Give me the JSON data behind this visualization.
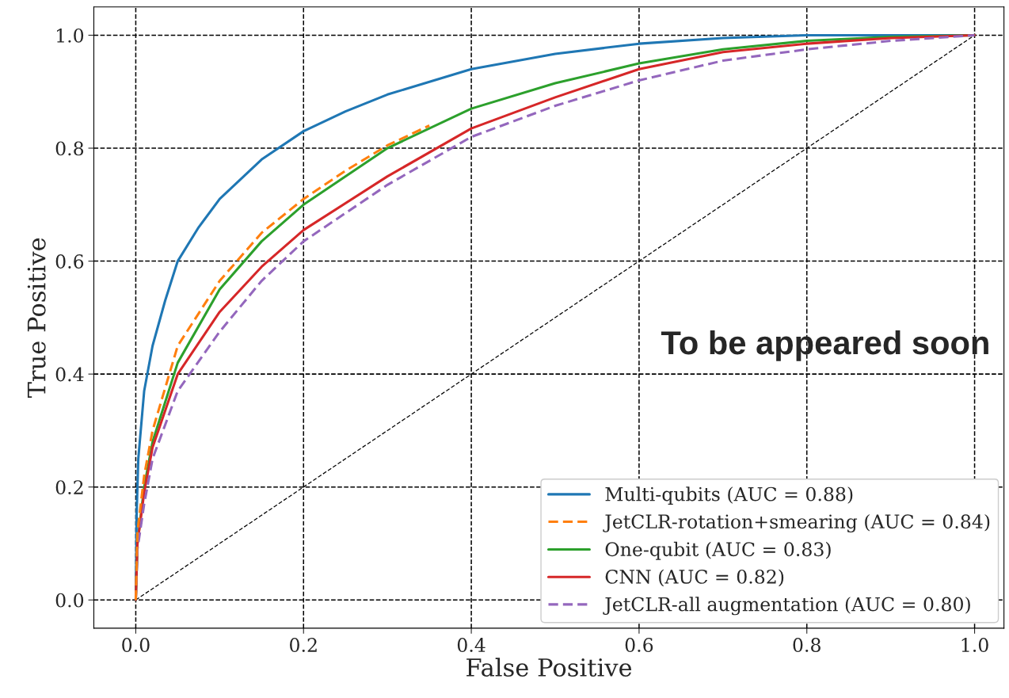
{
  "chart_data": {
    "type": "line",
    "xlabel": "False Positive",
    "ylabel": "True Positive",
    "xlim": [
      -0.05,
      1.035
    ],
    "ylim": [
      -0.05,
      1.05
    ],
    "xticks": [
      {
        "value": 0,
        "label": "0.0"
      },
      0.2,
      0.4,
      0.6,
      0.8,
      {
        "value": 1,
        "label": "1.0"
      }
    ],
    "yticks": [
      {
        "value": 0,
        "label": "0.0"
      },
      0.2,
      0.4,
      0.6,
      0.8,
      {
        "value": 1,
        "label": "1.0"
      }
    ],
    "grid": true,
    "legend": "bottom right",
    "marker": "none",
    "annotations": [
      "To be appeared soon"
    ],
    "series": [
      {
        "name": "Multi-qubits (AUC = 0.88)",
        "color": "#1f77b4",
        "line_style": "solid",
        "x": [
          0,
          0.001,
          0.003,
          0.01,
          0.02,
          0.035,
          0.05,
          0.075,
          0.1,
          0.15,
          0.2,
          0.25,
          0.3,
          0.4,
          0.5,
          0.6,
          0.7,
          0.8,
          1
        ],
        "values": [
          0,
          0.15,
          0.25,
          0.37,
          0.45,
          0.53,
          0.6,
          0.66,
          0.71,
          0.78,
          0.83,
          0.865,
          0.895,
          0.94,
          0.967,
          0.985,
          0.995,
          1,
          1
        ]
      },
      {
        "name": "JetCLR-rotation+smearing (AUC = 0.84)",
        "color": "#ff7f0e",
        "line_style": "dashed",
        "x": [
          0,
          0.002,
          0.01,
          0.02,
          0.05,
          0.1,
          0.15,
          0.2,
          0.25,
          0.3,
          0.35
        ],
        "values": [
          0,
          0.12,
          0.22,
          0.3,
          0.45,
          0.565,
          0.65,
          0.71,
          0.76,
          0.805,
          0.84
        ]
      },
      {
        "name": "One-qubit (AUC = 0.83)",
        "color": "#2ca02c",
        "line_style": "solid",
        "x": [
          0,
          0.002,
          0.01,
          0.02,
          0.05,
          0.1,
          0.15,
          0.2,
          0.3,
          0.4,
          0.5,
          0.6,
          0.7,
          0.8,
          0.9,
          1
        ],
        "values": [
          0,
          0.1,
          0.2,
          0.28,
          0.42,
          0.55,
          0.635,
          0.7,
          0.8,
          0.87,
          0.915,
          0.95,
          0.975,
          0.99,
          0.997,
          1
        ]
      },
      {
        "name": "CNN (AUC = 0.82)",
        "color": "#d62728",
        "line_style": "solid",
        "x": [
          0,
          0.002,
          0.01,
          0.02,
          0.05,
          0.1,
          0.15,
          0.2,
          0.3,
          0.4,
          0.5,
          0.6,
          0.7,
          0.8,
          0.9,
          1
        ],
        "values": [
          0,
          0.1,
          0.19,
          0.27,
          0.4,
          0.51,
          0.59,
          0.655,
          0.75,
          0.835,
          0.89,
          0.94,
          0.97,
          0.985,
          0.995,
          1
        ]
      },
      {
        "name": "JetCLR-all augmentation (AUC = 0.80)",
        "color": "#9467bd",
        "line_style": "dashed",
        "x": [
          0,
          0.002,
          0.01,
          0.02,
          0.05,
          0.1,
          0.15,
          0.2,
          0.3,
          0.4,
          0.5,
          0.6,
          0.7,
          0.8,
          0.9,
          1
        ],
        "values": [
          0,
          0.09,
          0.17,
          0.25,
          0.37,
          0.475,
          0.565,
          0.635,
          0.735,
          0.82,
          0.875,
          0.92,
          0.955,
          0.975,
          0.99,
          1
        ]
      },
      {
        "color": "#000000",
        "line_style": "dashed",
        "x": [
          0,
          1
        ],
        "values": [
          0,
          1
        ]
      }
    ]
  }
}
